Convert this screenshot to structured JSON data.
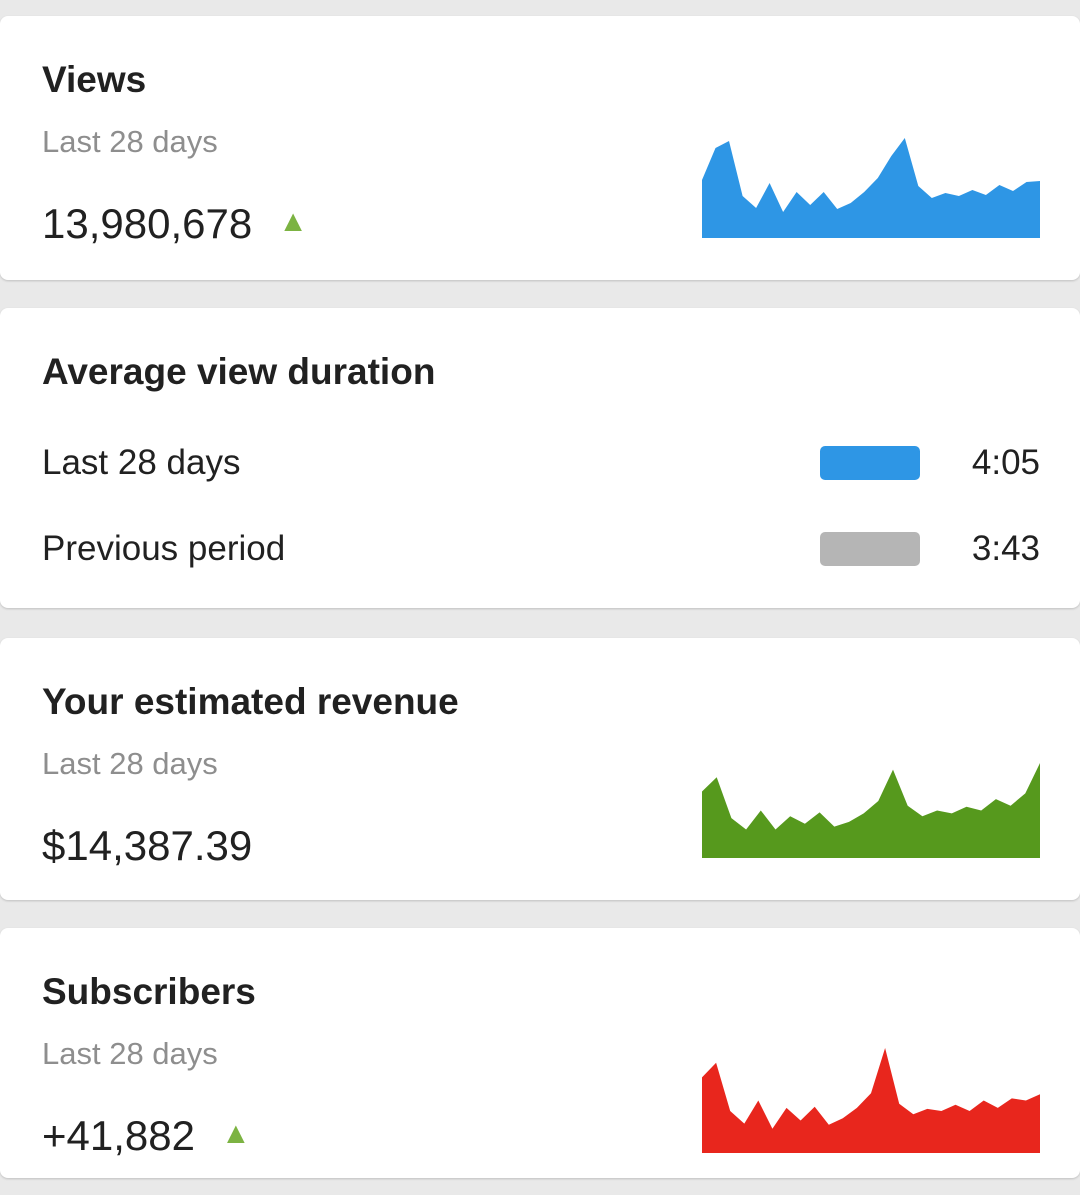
{
  "colors": {
    "background": "#e9e9e9",
    "card_background": "#ffffff",
    "views_blue": "#2e96e5",
    "revenue_green": "#56991d",
    "subscribers_red": "#e8261d",
    "previous_period_gray": "#b5b5b5",
    "trend_up_green": "#7cb342",
    "title_text": "#212121",
    "subtitle_gray": "#8e8e8e"
  },
  "cards": {
    "views": {
      "title": "Views",
      "subtitle": "Last 28 days",
      "value": "13,980,678",
      "trend": "up",
      "trend_icon": "▲"
    },
    "avg_view_duration": {
      "title": "Average view duration",
      "rows": [
        {
          "label": "Last 28 days",
          "value": "4:05"
        },
        {
          "label": "Previous period",
          "value": "3:43"
        }
      ]
    },
    "revenue": {
      "title": "Your estimated revenue",
      "subtitle": "Last 28 days",
      "value": "$14,387.39"
    },
    "subscribers": {
      "title": "Subscribers",
      "subtitle": "Last 28 days",
      "value": "+41,882",
      "trend": "up",
      "trend_icon": "▲"
    }
  },
  "chart_data": [
    {
      "type": "area",
      "title": "Views",
      "period": "Last 28 days",
      "color": "#2e96e5",
      "ylim": [
        0,
        100
      ],
      "values": [
        58,
        90,
        97,
        42,
        30,
        55,
        26,
        46,
        33,
        46,
        29,
        35,
        46,
        60,
        82,
        100,
        52,
        40,
        45,
        42,
        48,
        43,
        53,
        47,
        56,
        57
      ]
    },
    {
      "type": "bar",
      "title": "Average view duration",
      "categories": [
        "Last 28 days",
        "Previous period"
      ],
      "values": [
        "4:05",
        "3:43"
      ],
      "values_seconds": [
        245,
        223
      ],
      "colors": [
        "#2e96e5",
        "#b5b5b5"
      ]
    },
    {
      "type": "area",
      "title": "Your estimated revenue",
      "period": "Last 28 days",
      "color": "#56991d",
      "ylim": [
        0,
        100
      ],
      "values": [
        70,
        85,
        42,
        30,
        50,
        30,
        44,
        36,
        48,
        33,
        38,
        47,
        60,
        93,
        55,
        44,
        50,
        47,
        54,
        50,
        62,
        55,
        68,
        100
      ]
    },
    {
      "type": "area",
      "title": "Subscribers",
      "period": "Last 28 days",
      "color": "#e8261d",
      "ylim": [
        0,
        100
      ],
      "values": [
        72,
        86,
        40,
        28,
        50,
        23,
        43,
        31,
        44,
        27,
        33,
        43,
        57,
        100,
        47,
        37,
        42,
        40,
        46,
        40,
        50,
        43,
        52,
        50,
        56
      ]
    }
  ]
}
